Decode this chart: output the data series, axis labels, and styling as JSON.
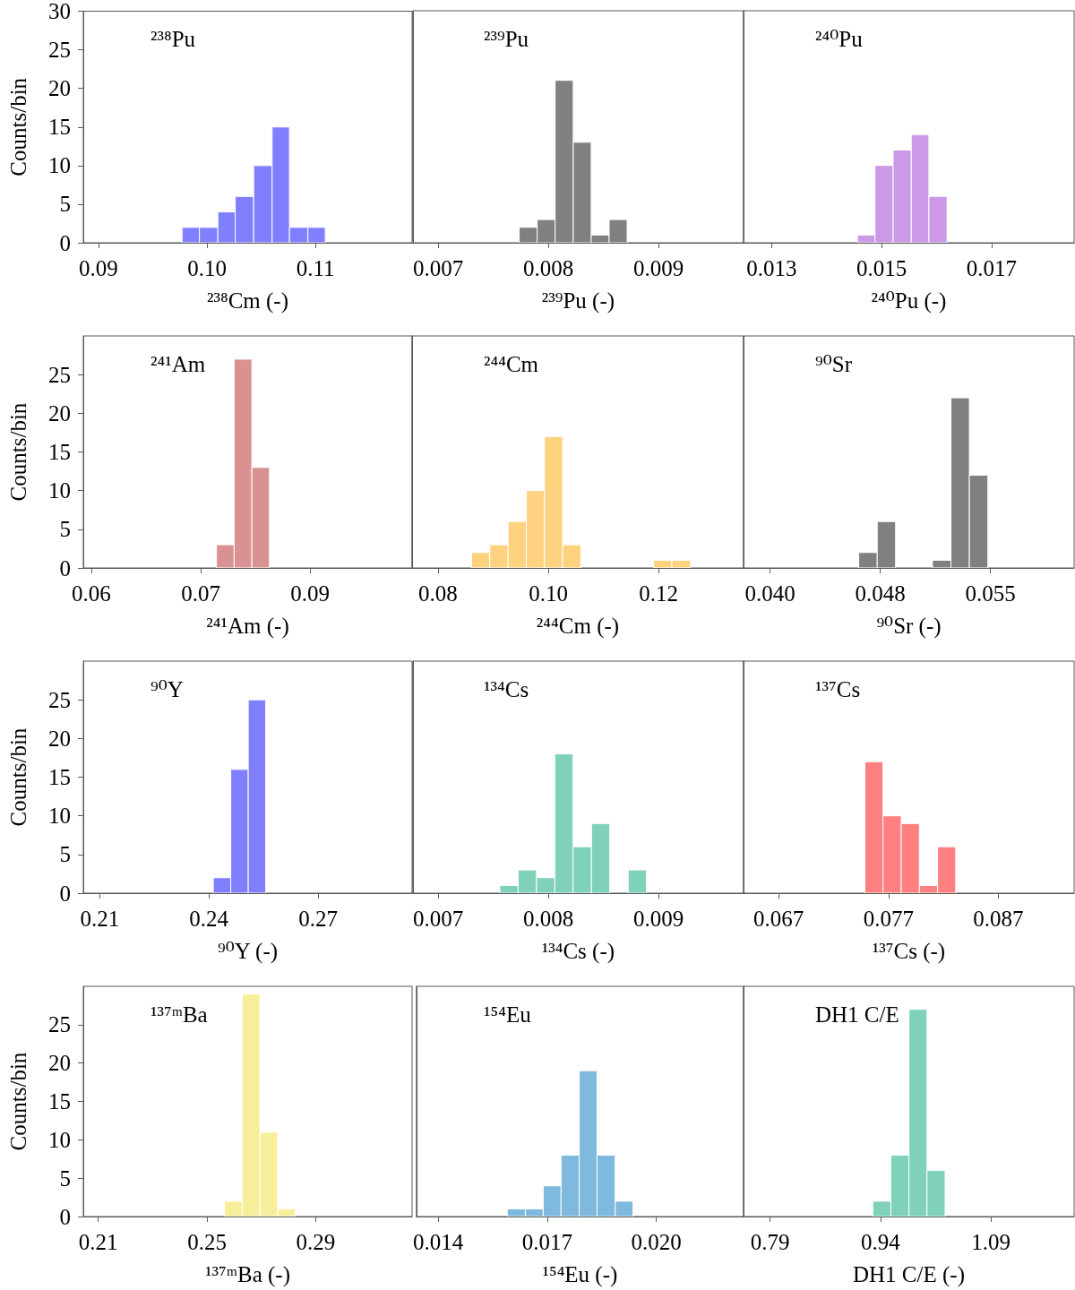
{
  "chart_data": [
    {
      "type": "histogram",
      "title": "²³⁸Pu",
      "xlabel": "²³⁸Cm (-)",
      "ylabel": "Counts/bin",
      "color": "#8080ff",
      "bins": [
        0.0977,
        0.0993,
        0.101,
        0.1026,
        0.1043,
        0.106,
        0.1076,
        0.1093,
        0.1109
      ],
      "values": [
        2,
        2,
        4,
        6,
        10,
        15,
        2,
        2
      ],
      "xlim": [
        0.0886,
        0.1189
      ],
      "xticks": [
        0.09,
        {
          "value": 0.1,
          "label": "0.10"
        },
        0.11
      ],
      "ylim": [
        0,
        30
      ],
      "yticks": [
        0,
        5,
        10,
        15,
        20,
        25,
        30
      ]
    },
    {
      "type": "histogram",
      "title": "²³⁹Pu",
      "xlabel": "²³⁹Pu (-)",
      "color": "#808080",
      "bins": [
        0.007735,
        0.007898,
        0.008061,
        0.008225,
        0.008388,
        0.008551,
        0.008714
      ],
      "values": [
        2,
        3,
        21,
        13,
        1,
        3
      ],
      "xlim": [
        0.00677,
        0.00977
      ],
      "xticks": [
        0.007,
        0.008,
        0.009
      ],
      "ylim": [
        0,
        30
      ],
      "tick_labels": "x"
    },
    {
      "type": "histogram",
      "title": "²⁴⁰Pu",
      "xlabel": "²⁴⁰Pu (-)",
      "color": "#cc99e6",
      "bins": [
        0.01456,
        0.01488,
        0.01521,
        0.01554,
        0.01586,
        0.01619
      ],
      "values": [
        1,
        10,
        12,
        14,
        6
      ],
      "xlim": [
        0.01249,
        0.0185
      ],
      "xticks": [
        0.013,
        0.015,
        0.017
      ],
      "ylim": [
        0,
        30
      ],
      "tick_labels": "x"
    },
    {
      "type": "histogram",
      "title": "²⁴¹Am",
      "xlabel": "²⁴¹Am (-)",
      "ylabel": "Counts/bin",
      "color": "#d99191",
      "bins": [
        0.07717,
        0.07959,
        0.08202,
        0.08444
      ],
      "values": [
        3,
        27,
        13
      ],
      "xlim": [
        0.0589,
        0.104
      ],
      "xticks": [
        0.06,
        {
          "value": 0.075,
          "label": "0.07"
        },
        0.09
      ],
      "ylim": [
        0,
        30
      ],
      "yticks": [
        0,
        5,
        10,
        15,
        20,
        25
      ]
    },
    {
      "type": "histogram",
      "title": "²⁴⁴Cm",
      "xlabel": "²⁴⁴Cm (-)",
      "color": "#ffd280",
      "bins": [
        0.08609,
        0.0894,
        0.0927,
        0.09601,
        0.09931,
        0.1026,
        0.1059,
        0.1191,
        0.1224,
        0.1258
      ],
      "values": [
        2,
        3,
        6,
        10,
        17,
        3,
        0,
        1,
        1
      ],
      "xlim": [
        0.0753,
        0.1354
      ],
      "xticks": [
        0.08,
        {
          "value": 0.1,
          "label": "0.10"
        },
        0.12
      ],
      "ylim": [
        0,
        30
      ],
      "tick_labels": "x"
    },
    {
      "type": "histogram",
      "title": "⁹⁰Sr",
      "xlabel": "⁹⁰Sr (-)",
      "color": "#808080",
      "bins": [
        0.04604,
        0.0473,
        0.04855,
        0.05106,
        0.05232,
        0.05357,
        0.05483
      ],
      "values": [
        2,
        6,
        0,
        1,
        22,
        12
      ],
      "xlim": [
        0.0382,
        0.0607
      ],
      "xticks": [
        {
          "value": 0.04,
          "label": "0.040"
        },
        {
          "value": 0.0475,
          "label": "0.048"
        },
        0.055
      ],
      "ylim": [
        0,
        30
      ],
      "tick_labels": "x"
    },
    {
      "type": "histogram",
      "title": "⁹⁰Y",
      "xlabel": "⁹⁰Y (-)",
      "ylabel": "Counts/bin",
      "color": "#8080ff",
      "bins": [
        0.2412,
        0.246,
        0.2508,
        0.2556
      ],
      "values": [
        2,
        16,
        25
      ],
      "xlim": [
        0.2055,
        0.2958
      ],
      "xticks": [
        0.21,
        0.24,
        0.27
      ],
      "ylim": [
        0,
        30
      ],
      "yticks": [
        0,
        5,
        10,
        15,
        20,
        25
      ]
    },
    {
      "type": "histogram",
      "title": "¹³⁴Cs",
      "xlabel": "¹³⁴Cs (-)",
      "color": "#80d1b9",
      "bins": [
        0.007559,
        0.007725,
        0.007892,
        0.008058,
        0.008224,
        0.008391,
        0.008557,
        0.008724,
        0.00889
      ],
      "values": [
        1,
        3,
        2,
        18,
        6,
        9,
        0,
        3
      ],
      "xlim": [
        0.00677,
        0.00977
      ],
      "xticks": [
        0.007,
        0.008,
        0.009
      ],
      "ylim": [
        0,
        30
      ],
      "tick_labels": "x"
    },
    {
      "type": "histogram",
      "title": "¹³⁷Cs",
      "xlabel": "¹³⁷Cs (-)",
      "color": "#ff8080",
      "bins": [
        0.07485,
        0.0765,
        0.07816,
        0.07981,
        0.08147,
        0.08312
      ],
      "values": [
        17,
        10,
        9,
        1,
        6
      ],
      "xlim": [
        0.0638,
        0.0939
      ],
      "xticks": [
        0.067,
        0.077,
        0.087
      ],
      "ylim": [
        0,
        30
      ],
      "tick_labels": "x"
    },
    {
      "type": "histogram",
      "title": "¹³⁷ᵐBa",
      "xlabel": "¹³⁷ᵐBa (-)",
      "ylabel": "Counts/bin",
      "color": "#f7ee9c",
      "bins": [
        0.2565,
        0.263,
        0.2695,
        0.276,
        0.2825
      ],
      "values": [
        2,
        29,
        11,
        1
      ],
      "xlim": [
        0.2045,
        0.3255
      ],
      "xticks": [
        0.21,
        0.25,
        0.29
      ],
      "ylim": [
        0,
        30
      ],
      "yticks": [
        0,
        5,
        10,
        15,
        20,
        25
      ]
    },
    {
      "type": "histogram",
      "title": "¹⁵⁴Eu",
      "xlabel": "¹⁵⁴Eu (-)",
      "color": "#80b9de",
      "bins": [
        0.0159,
        0.0164,
        0.01689,
        0.01738,
        0.01788,
        0.01837,
        0.01887,
        0.01936
      ],
      "values": [
        1,
        1,
        4,
        8,
        19,
        8,
        2
      ],
      "xlim": [
        0.0134,
        0.0224
      ],
      "xticks": [
        0.014,
        0.017,
        {
          "value": 0.02,
          "label": "0.020"
        }
      ],
      "ylim": [
        0,
        30
      ],
      "tick_labels": "x"
    },
    {
      "type": "histogram",
      "title": "DH1 C/E",
      "xlabel": "DH1 C/E (-)",
      "color": "#80d1b9",
      "bins": [
        0.9295,
        0.9541,
        0.9787,
        1.0032,
        1.0278
      ],
      "values": [
        2,
        8,
        27,
        6
      ],
      "xlim": [
        0.754,
        1.203
      ],
      "xticks": [
        0.79,
        0.94,
        1.09
      ],
      "ylim": [
        0,
        30
      ],
      "tick_labels": "x"
    }
  ]
}
